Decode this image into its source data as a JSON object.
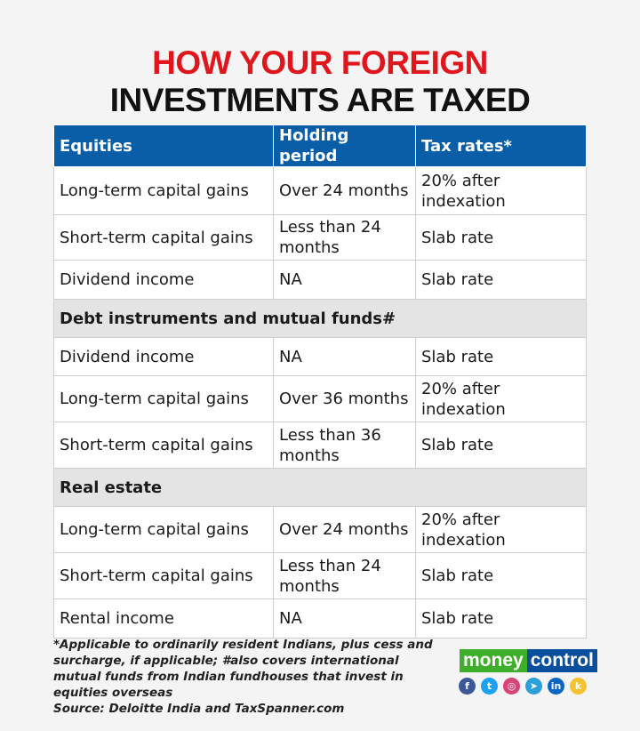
{
  "title": {
    "line1": "HOW YOUR FOREIGN",
    "line2": "INVESTMENTS ARE TAXED"
  },
  "table": {
    "headers": [
      "Equities",
      "Holding period",
      "Tax rates*"
    ],
    "equities": [
      [
        "Long-term capital gains",
        "Over 24 months",
        "20% after indexation"
      ],
      [
        "Short-term capital gains",
        "Less than 24 months",
        "Slab rate"
      ],
      [
        "Dividend income",
        "NA",
        "Slab rate"
      ]
    ],
    "debt_label": "Debt instruments and mutual funds#",
    "debt": [
      [
        "Dividend income",
        "NA",
        "Slab rate"
      ],
      [
        "Long-term capital gains",
        "Over 36 months",
        "20% after indexation"
      ],
      [
        "Short-term capital gains",
        "Less than 36 months",
        "Slab rate"
      ]
    ],
    "real_estate_label": "Real estate",
    "real_estate": [
      [
        "Long-term capital gains",
        "Over 24 months",
        "20% after indexation"
      ],
      [
        "Short-term capital gains",
        "Less than 24 months",
        "Slab rate"
      ],
      [
        "Rental income",
        "NA",
        "Slab rate"
      ]
    ]
  },
  "footer": {
    "note": "*Applicable to ordinarily resident Indians, plus cess and surcharge, if applicable; #also covers international mutual funds from Indian fundhouses that invest in equities overseas",
    "source": "Source: Deloitte India and TaxSpanner.com"
  },
  "logo": {
    "part1": "money",
    "part2": "control"
  },
  "social": [
    {
      "icon": "facebook-icon",
      "glyph": "f",
      "color": "#3b5998"
    },
    {
      "icon": "twitter-icon",
      "glyph": "t",
      "color": "#1da1f2"
    },
    {
      "icon": "instagram-icon",
      "glyph": "◎",
      "color": "#d6457a"
    },
    {
      "icon": "telegram-icon",
      "glyph": "➤",
      "color": "#2a9fd8"
    },
    {
      "icon": "linkedin-icon",
      "glyph": "in",
      "color": "#0a66c2"
    },
    {
      "icon": "koo-icon",
      "glyph": "k",
      "color": "#f2c230"
    }
  ]
}
